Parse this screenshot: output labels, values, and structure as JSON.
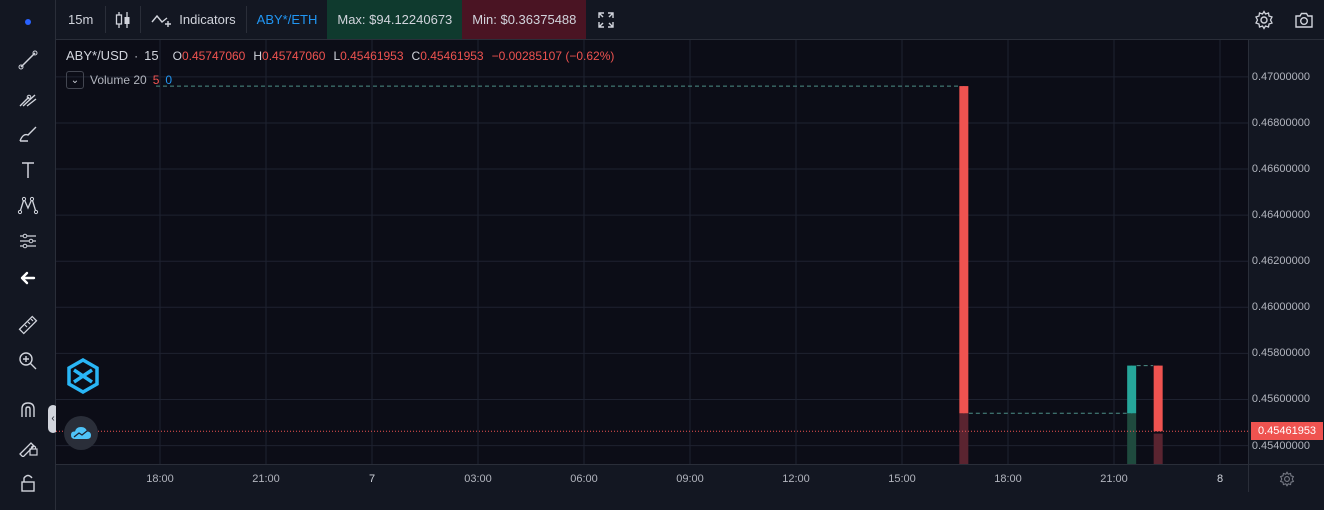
{
  "toolbar": {
    "interval": "15m",
    "indicators_label": "Indicators",
    "compare_pair": "ABY*/ETH",
    "max_label": "Max: $94.12240673",
    "min_label": "Min: $0.36375488"
  },
  "legend": {
    "symbol": "ABY*/USD",
    "interval": "15",
    "open_label": "O",
    "open_value": "0.45747060",
    "high_label": "H",
    "high_value": "0.45747060",
    "low_label": "L",
    "low_value": "0.45461953",
    "close_label": "C",
    "close_value": "0.45461953",
    "change": "−0.00285107 (−0.62%)",
    "volume_name": "Volume 20",
    "volume_val1": "5",
    "volume_val2": "0"
  },
  "price_axis": {
    "labels": [
      "0.47000000",
      "0.46800000",
      "0.46600000",
      "0.46400000",
      "0.46200000",
      "0.46000000",
      "0.45800000",
      "0.45600000",
      "0.45400000"
    ],
    "current_price": "0.45461953"
  },
  "time_axis": {
    "labels": [
      "18:00",
      "21:00",
      "7",
      "03:00",
      "06:00",
      "09:00",
      "12:00",
      "15:00",
      "18:00",
      "21:00",
      "8"
    ]
  },
  "colors": {
    "up": "#26a69a",
    "down": "#ef5350",
    "background": "#0c0d17",
    "grid": "#1e2230",
    "accent": "#2196f3"
  },
  "icons": {
    "left_toolbar": [
      "dot-icon",
      "trend-line-icon",
      "pitchfork-icon",
      "brush-icon",
      "text-icon",
      "pattern-icon",
      "prediction-icon",
      "back-arrow-icon",
      "ruler-icon",
      "zoom-in-icon",
      "magnet-icon",
      "lock-drawing-icon",
      "unlock-icon"
    ],
    "top_right": [
      "settings-icon",
      "camera-icon"
    ]
  },
  "chart_data": {
    "type": "candlestick",
    "symbol": "ABY*/USD",
    "interval": "15",
    "ylim": [
      0.4532,
      0.4716
    ],
    "price_ticks": [
      0.47,
      0.468,
      0.466,
      0.464,
      0.462,
      0.46,
      0.458,
      0.456,
      0.454
    ],
    "x_ticks": [
      "18:00",
      "21:00",
      "7",
      "03:00",
      "06:00",
      "09:00",
      "12:00",
      "15:00",
      "18:00",
      "21:00",
      "8"
    ],
    "candles": [
      {
        "time": "16:45",
        "open": 0.4696,
        "high": 0.4696,
        "low": 0.4554,
        "close": 0.4554,
        "direction": "down"
      },
      {
        "time": "21:30",
        "open": 0.4554,
        "high": 0.4574706,
        "low": 0.4554,
        "close": 0.4574706,
        "direction": "up"
      },
      {
        "time": "22:15",
        "open": 0.4574706,
        "high": 0.4574706,
        "low": 0.45461953,
        "close": 0.45461953,
        "direction": "down"
      }
    ],
    "volume": [
      {
        "time": "16:45",
        "level": 1.0,
        "direction": "down"
      },
      {
        "time": "21:30",
        "level": 1.0,
        "direction": "up"
      },
      {
        "time": "22:15",
        "level": 0.6,
        "direction": "down"
      }
    ],
    "current_price": 0.45461953,
    "grid": true
  }
}
